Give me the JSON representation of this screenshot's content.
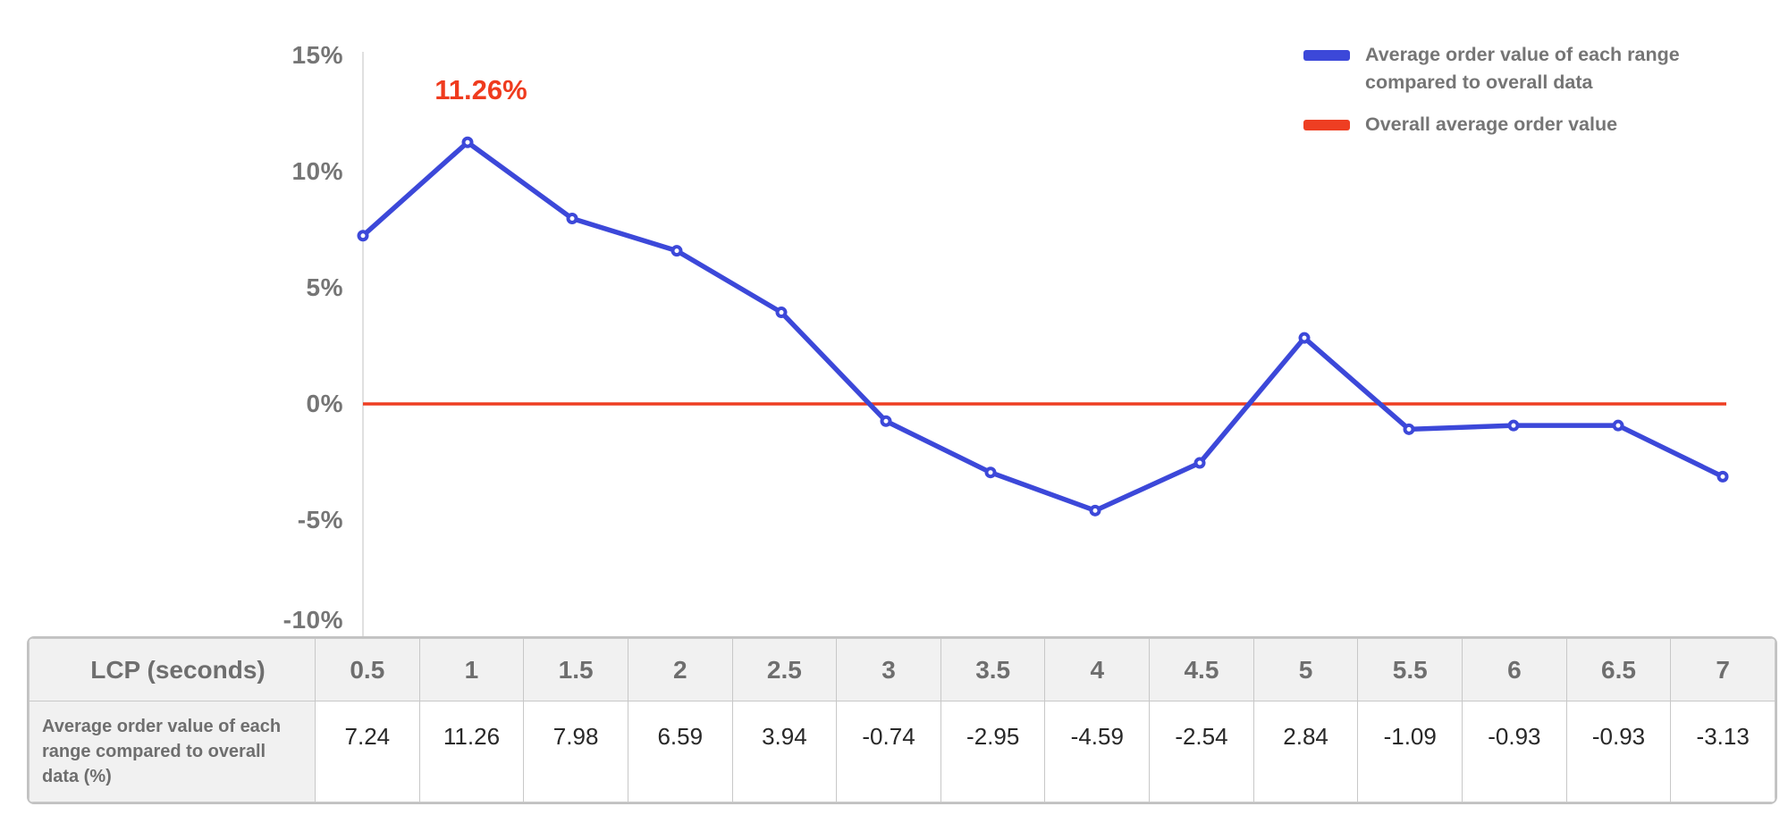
{
  "chart_data": {
    "type": "line",
    "title": "",
    "xlabel": "LCP (seconds)",
    "ylabel": "",
    "x": [
      0.5,
      1,
      1.5,
      2,
      2.5,
      3,
      3.5,
      4,
      4.5,
      5,
      5.5,
      6,
      6.5,
      7
    ],
    "series": [
      {
        "name": "Average order value of each range compared to overall data",
        "type": "line",
        "color": "#3C48D9",
        "values": [
          7.24,
          11.26,
          7.98,
          6.59,
          3.94,
          -0.74,
          -2.95,
          -4.59,
          -2.54,
          2.84,
          -1.09,
          -0.93,
          -0.93,
          -3.13
        ]
      },
      {
        "name": "Overall average order value",
        "type": "constant-line",
        "color": "#EE3E22",
        "value": 0
      }
    ],
    "annotation": {
      "text": "11.26%",
      "x_index": 1,
      "value": 11.26,
      "color": "#EF3B1E"
    },
    "y_ticks": [
      {
        "label": "15%",
        "value": 15
      },
      {
        "label": "10%",
        "value": 10
      },
      {
        "label": "5%",
        "value": 5
      },
      {
        "label": "0%",
        "value": 0
      },
      {
        "label": "-5%",
        "value": -5
      },
      {
        "label": "-10%",
        "value": -10
      }
    ],
    "ylim": [
      -10,
      15
    ],
    "grid": false,
    "legend_position": "top-right"
  },
  "legend": {
    "items": [
      {
        "label": "Average order value of each range compared to overall data",
        "color": "#3C48D9"
      },
      {
        "label": "Overall average order value",
        "color": "#EE3E22"
      }
    ]
  },
  "table": {
    "header_label": "LCP (seconds)",
    "columns": [
      "0.5",
      "1",
      "1.5",
      "2",
      "2.5",
      "3",
      "3.5",
      "4",
      "4.5",
      "5",
      "5.5",
      "6",
      "6.5",
      "7"
    ],
    "row_label": "Average order value of each range compared to overall data (%)",
    "values": [
      "7.24",
      "11.26",
      "7.98",
      "6.59",
      "3.94",
      "-0.74",
      "-2.95",
      "-4.59",
      "-2.54",
      "2.84",
      "-1.09",
      "-0.93",
      "-0.93",
      "-3.13"
    ]
  },
  "colors": {
    "series_blue": "#3C48D9",
    "overall_red": "#EE3E22",
    "axis_text": "#757575",
    "table_header_text": "#6E6E6E",
    "value_text": "#282828",
    "table_border": "#C6C6C6",
    "header_bg": "#F1F1F1",
    "axis_line": "#E0E0E0"
  }
}
